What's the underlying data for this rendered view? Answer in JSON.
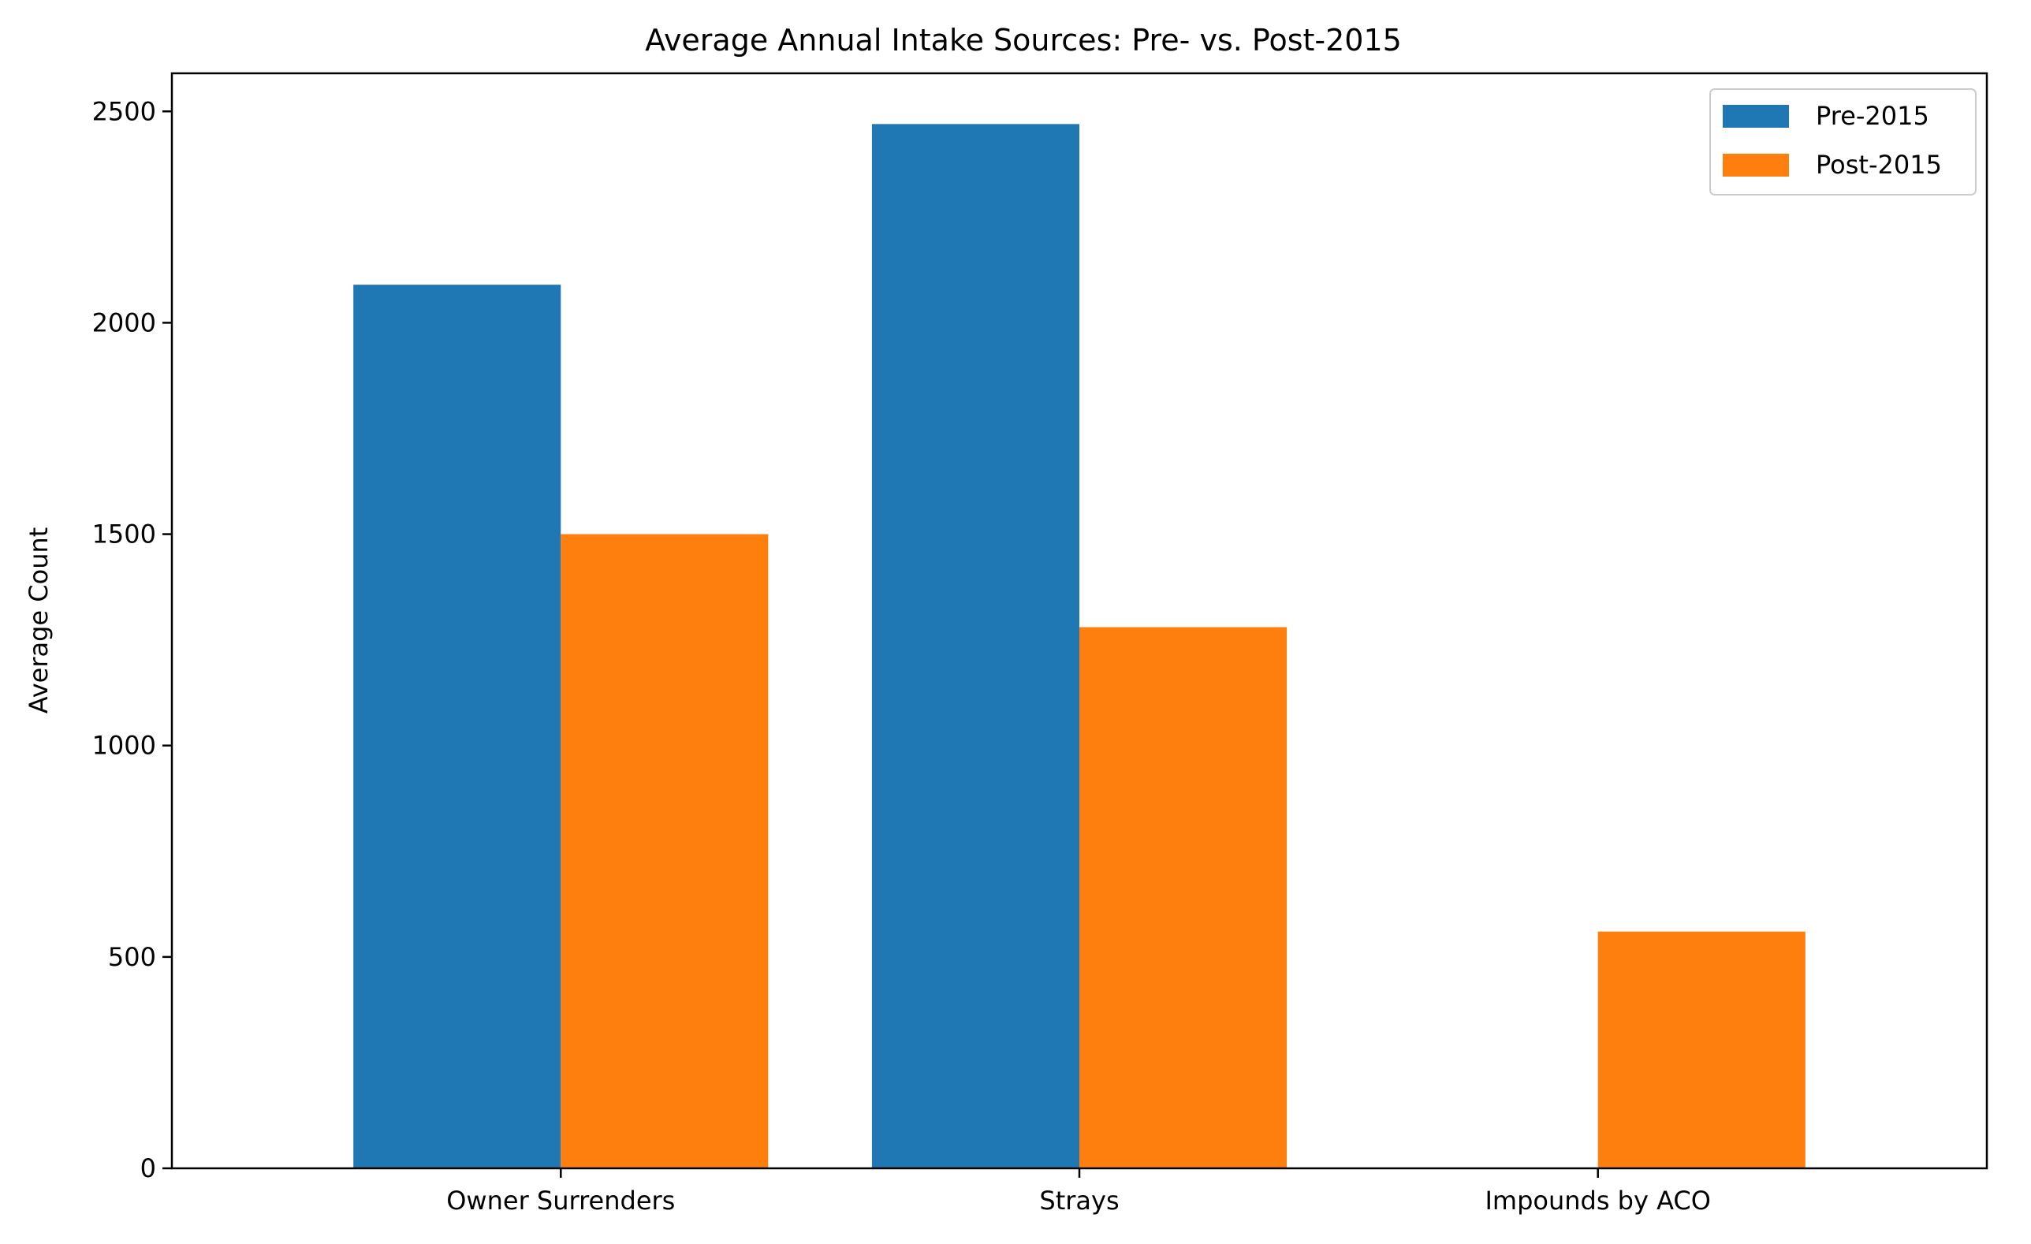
{
  "chart_data": {
    "type": "bar",
    "title": "Average Annual Intake Sources: Pre- vs. Post-2015",
    "xlabel": "",
    "ylabel": "Average Count",
    "categories": [
      "Owner Surrenders",
      "Strays",
      "Impounds by ACO"
    ],
    "series": [
      {
        "name": "Pre-2015",
        "color": "#1f77b4",
        "values": [
          2090,
          2470,
          0
        ]
      },
      {
        "name": "Post-2015",
        "color": "#ff7f0e",
        "values": [
          1500,
          1280,
          560
        ]
      }
    ],
    "ylim": [
      0,
      2590
    ],
    "yticks": [
      0,
      500,
      1000,
      1500,
      2000,
      2500
    ],
    "grid": false,
    "legend_position": "top-right"
  }
}
